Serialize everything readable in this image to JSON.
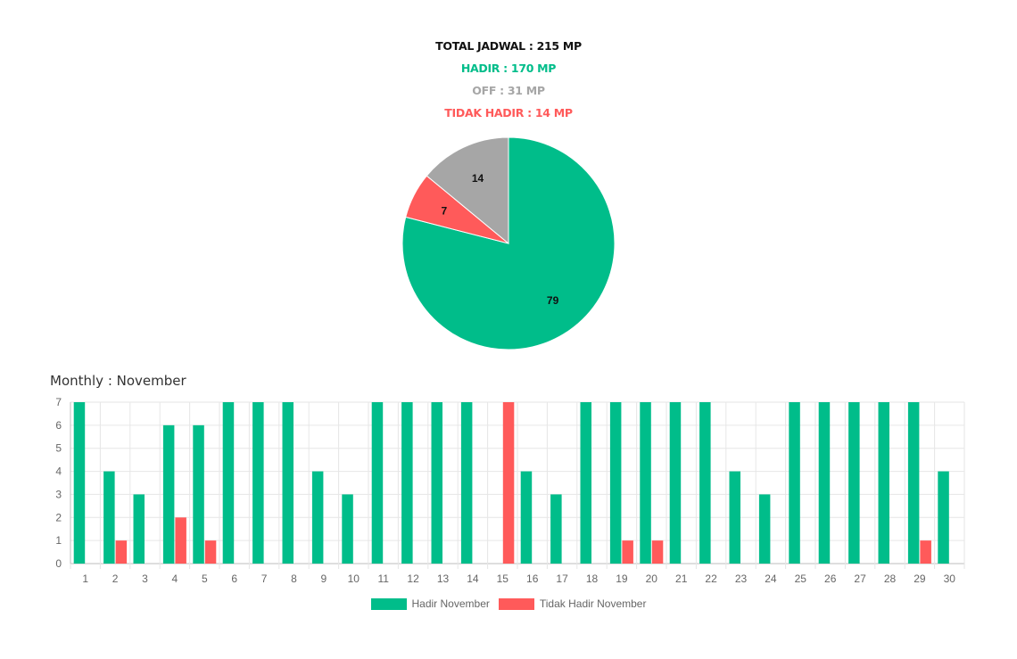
{
  "summary": {
    "total": "TOTAL JADWAL : 215 MP",
    "hadir": "HADIR : 170 MP",
    "off": "OFF : 31 MP",
    "tidak_hadir": "TIDAK HADIR : 14 MP"
  },
  "colors": {
    "hadir": "#00bd8a",
    "off": "#a6a6a6",
    "tidak_hadir": "#ff5a5a"
  },
  "monthly_title": "Monthly : November",
  "chart_data": [
    {
      "type": "pie",
      "slices": [
        {
          "label": "79",
          "value": 79,
          "color": "#00bd8a"
        },
        {
          "label": "7",
          "value": 7,
          "color": "#ff5a5a"
        },
        {
          "label": "14",
          "value": 14,
          "color": "#a6a6a6"
        }
      ]
    },
    {
      "type": "bar",
      "categories": [
        "1",
        "2",
        "3",
        "4",
        "5",
        "6",
        "7",
        "8",
        "9",
        "10",
        "11",
        "12",
        "13",
        "14",
        "15",
        "16",
        "17",
        "18",
        "19",
        "20",
        "21",
        "22",
        "23",
        "24",
        "25",
        "26",
        "27",
        "28",
        "29",
        "30"
      ],
      "series": [
        {
          "name": "Hadir November",
          "color": "#00bd8a",
          "values": [
            7,
            4,
            3,
            6,
            6,
            7,
            7,
            7,
            4,
            3,
            7,
            7,
            7,
            7,
            0,
            4,
            3,
            7,
            7,
            7,
            7,
            7,
            4,
            3,
            7,
            7,
            7,
            7,
            7,
            4
          ]
        },
        {
          "name": "Tidak Hadir November",
          "color": "#ff5a5a",
          "values": [
            0,
            1,
            0,
            2,
            1,
            0,
            0,
            0,
            0,
            0,
            0,
            0,
            0,
            0,
            7,
            0,
            0,
            0,
            1,
            1,
            0,
            0,
            0,
            0,
            0,
            0,
            0,
            0,
            1,
            0
          ]
        }
      ],
      "ylim": [
        0,
        7
      ],
      "yticks": [
        0,
        1,
        2,
        3,
        4,
        5,
        6,
        7
      ],
      "grid": true,
      "legend": "bottom"
    }
  ]
}
